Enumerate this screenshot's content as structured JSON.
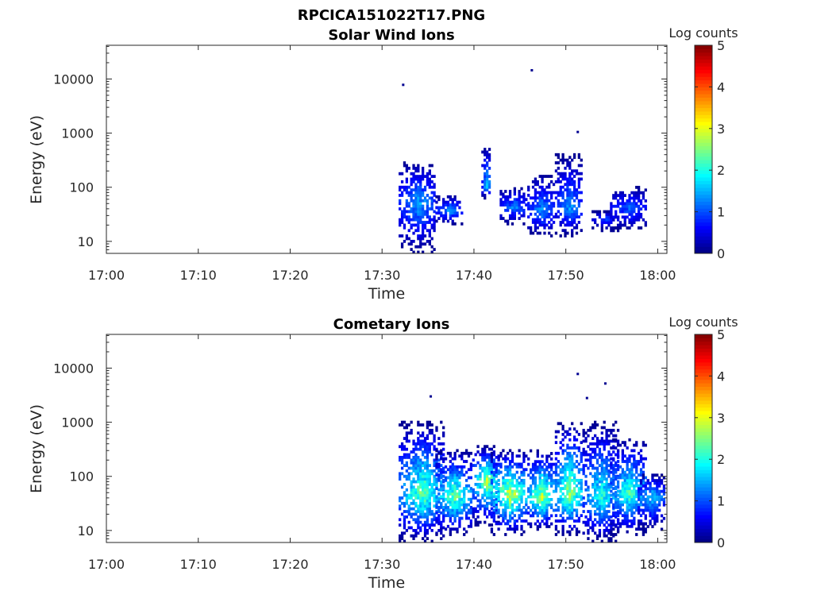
{
  "figure": {
    "filename_title": "RPCICA151022T17.PNG"
  },
  "chart_data": [
    {
      "type": "heatmap",
      "title": "Solar Wind Ions",
      "xlabel": "Time",
      "ylabel": "Energy (eV)",
      "x_scale": "time",
      "y_scale": "log",
      "xlim": [
        "17:00",
        "18:01"
      ],
      "ylim": [
        6,
        42000
      ],
      "x_ticks": [
        "17:00",
        "17:10",
        "17:20",
        "17:30",
        "17:40",
        "17:50",
        "18:00"
      ],
      "y_ticks": [
        "10",
        "100",
        "1000",
        "10000"
      ],
      "colorbar": {
        "label": "Log counts",
        "range": [
          0,
          5
        ],
        "ticks": [
          "0",
          "1",
          "2",
          "3",
          "4",
          "5"
        ],
        "colormap": "jet"
      },
      "bursts": [
        {
          "t_start": "17:32",
          "t_end": "17:35",
          "e_low": 6,
          "e_high": 300,
          "peak_energy": 50,
          "peak_log_counts": 1.6
        },
        {
          "t_start": "17:36",
          "t_end": "17:38",
          "e_low": 20,
          "e_high": 70,
          "peak_energy": 35,
          "peak_log_counts": 1.5
        },
        {
          "t_start": "17:41",
          "t_end": "17:41",
          "e_low": 60,
          "e_high": 600,
          "peak_energy": 100,
          "peak_log_counts": 1.8
        },
        {
          "t_start": "17:43",
          "t_end": "17:45",
          "e_low": 20,
          "e_high": 100,
          "peak_energy": 40,
          "peak_log_counts": 1.4
        },
        {
          "t_start": "17:46",
          "t_end": "17:48",
          "e_low": 12,
          "e_high": 180,
          "peak_energy": 35,
          "peak_log_counts": 1.5
        },
        {
          "t_start": "17:49",
          "t_end": "17:51",
          "e_low": 12,
          "e_high": 400,
          "peak_energy": 40,
          "peak_log_counts": 1.5
        },
        {
          "t_start": "17:53",
          "t_end": "17:55",
          "e_low": 15,
          "e_high": 35,
          "peak_energy": 25,
          "peak_log_counts": 1.0
        },
        {
          "t_start": "17:55",
          "t_end": "17:58",
          "e_low": 15,
          "e_high": 100,
          "peak_energy": 40,
          "peak_log_counts": 1.2
        }
      ],
      "isolated_points": [
        {
          "time": "17:32",
          "energy": 7800
        },
        {
          "time": "17:46",
          "energy": 14500
        },
        {
          "time": "17:51",
          "energy": 1050
        }
      ]
    },
    {
      "type": "heatmap",
      "title": "Cometary Ions",
      "xlabel": "Time",
      "ylabel": "Energy (eV)",
      "x_scale": "time",
      "y_scale": "log",
      "xlim": [
        "17:00",
        "18:01"
      ],
      "ylim": [
        6,
        42000
      ],
      "x_ticks": [
        "17:00",
        "17:10",
        "17:20",
        "17:30",
        "17:40",
        "17:50",
        "18:00"
      ],
      "y_ticks": [
        "10",
        "100",
        "1000",
        "10000"
      ],
      "colorbar": {
        "label": "Log counts",
        "range": [
          0,
          5
        ],
        "ticks": [
          "0",
          "1",
          "2",
          "3",
          "4",
          "5"
        ],
        "colormap": "jet"
      },
      "bursts": [
        {
          "t_start": "17:32",
          "t_end": "17:36",
          "e_low": 6,
          "e_high": 1000,
          "peak_energy": 45,
          "peak_log_counts": 2.6
        },
        {
          "t_start": "17:36",
          "t_end": "17:39",
          "e_low": 8,
          "e_high": 300,
          "peak_energy": 40,
          "peak_log_counts": 2.6
        },
        {
          "t_start": "17:40",
          "t_end": "17:42",
          "e_low": 12,
          "e_high": 350,
          "peak_energy": 80,
          "peak_log_counts": 2.9
        },
        {
          "t_start": "17:42",
          "t_end": "17:45",
          "e_low": 8,
          "e_high": 300,
          "peak_energy": 45,
          "peak_log_counts": 3.1
        },
        {
          "t_start": "17:46",
          "t_end": "17:48",
          "e_low": 10,
          "e_high": 300,
          "peak_energy": 40,
          "peak_log_counts": 3.0
        },
        {
          "t_start": "17:49",
          "t_end": "17:51",
          "e_low": 8,
          "e_high": 1000,
          "peak_energy": 45,
          "peak_log_counts": 2.9
        },
        {
          "t_start": "17:52",
          "t_end": "17:55",
          "e_low": 6,
          "e_high": 1000,
          "peak_energy": 40,
          "peak_log_counts": 2.2
        },
        {
          "t_start": "17:55",
          "t_end": "17:58",
          "e_low": 8,
          "e_high": 500,
          "peak_energy": 45,
          "peak_log_counts": 2.4
        },
        {
          "t_start": "17:58",
          "t_end": "18:00",
          "e_low": 10,
          "e_high": 110,
          "peak_energy": 40,
          "peak_log_counts": 1.8
        }
      ],
      "isolated_points": [
        {
          "time": "17:35",
          "energy": 3000
        },
        {
          "time": "17:51",
          "energy": 7800
        },
        {
          "time": "17:52",
          "energy": 2800
        },
        {
          "time": "17:54",
          "energy": 5200
        }
      ]
    }
  ]
}
